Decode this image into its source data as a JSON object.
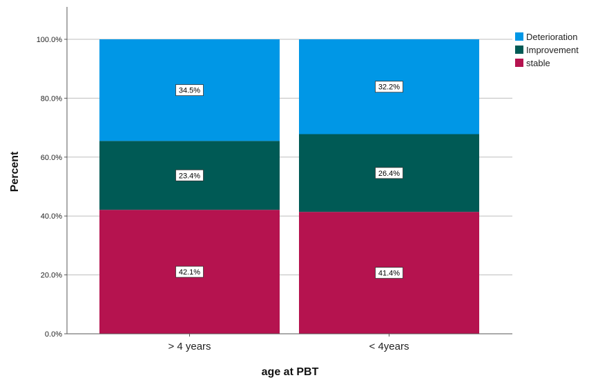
{
  "chart_data": {
    "type": "bar",
    "stacked": true,
    "categories": [
      "> 4 years",
      "< 4years"
    ],
    "series": [
      {
        "name": "stable",
        "values": [
          42.1,
          41.4
        ],
        "labels": [
          "42.1%",
          "41.4%"
        ],
        "color": "#B5134F"
      },
      {
        "name": "Improvement",
        "values": [
          23.4,
          26.4
        ],
        "labels": [
          "23.4%",
          "26.4%"
        ],
        "color": "#005A55"
      },
      {
        "name": "Deterioration",
        "values": [
          34.5,
          32.2
        ],
        "labels": [
          "34.5%",
          "32.2%"
        ],
        "color": "#0097E6"
      }
    ],
    "legend_order": [
      "Deterioration",
      "Improvement",
      "stable"
    ],
    "legend_position": "top-right",
    "xlabel": "age at PBT",
    "ylabel": "Percent",
    "ylim": [
      0,
      110
    ],
    "yticks": [
      0,
      20,
      40,
      60,
      80,
      100
    ],
    "ytick_labels": [
      "0.0%",
      "20.0%",
      "40.0%",
      "60.0%",
      "80.0%",
      "100.0%"
    ],
    "grid": true
  }
}
